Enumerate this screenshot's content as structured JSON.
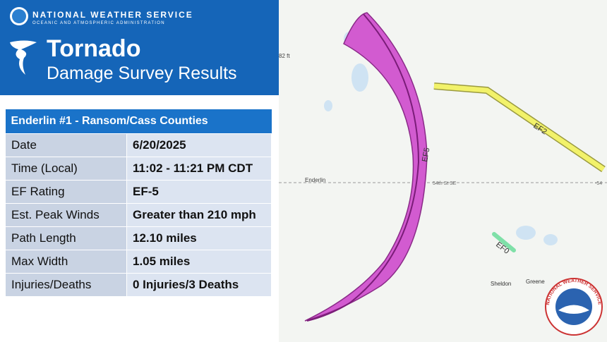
{
  "header": {
    "agency": "NATIONAL WEATHER SERVICE",
    "agency_sub": "OCEANIC AND ATMOSPHERIC ADMINISTRATION",
    "title": "Tornado",
    "subtitle": "Damage Survey Results"
  },
  "table": {
    "title": "Enderlin #1 - Ransom/Cass Counties",
    "rows": [
      [
        "Date",
        "6/20/2025"
      ],
      [
        "Time (Local)",
        "11:02 - 11:21 PM CDT"
      ],
      [
        "EF Rating",
        "EF-5"
      ],
      [
        "Est. Peak Winds",
        "Greater than 210 mph"
      ],
      [
        "Path Length",
        "12.10 miles"
      ],
      [
        "Max Width",
        "1.05 miles"
      ],
      [
        "Injuries/Deaths",
        "0 Injuries/3 Deaths"
      ]
    ]
  },
  "map": {
    "elevation": "82 ft",
    "ef5": "EF5",
    "ef2": "EF2",
    "ef0": "EF0",
    "town1": "Enderlin",
    "road": "54th St SE",
    "road_end": "-54",
    "town2": "Sheldon",
    "town3": "Greene"
  },
  "logo": {
    "text": "NATIONAL WEATHER SERVICE"
  }
}
